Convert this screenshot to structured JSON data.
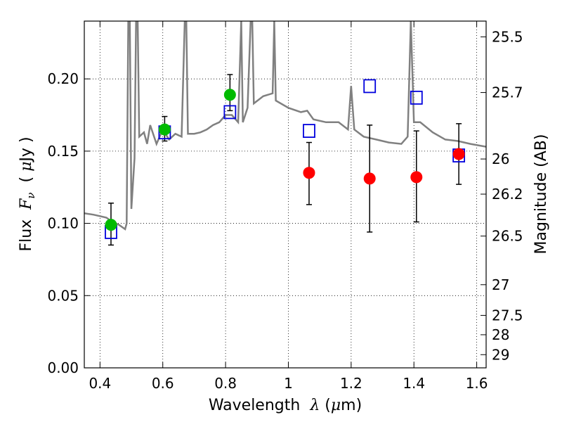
{
  "chart_data": {
    "type": "scatter",
    "title": "",
    "xlabel": {
      "prefix": "Wavelength  ",
      "symbol": "λ",
      "unit_open": " (",
      "unit_mu": "μ",
      "unit_close": "m)"
    },
    "ylabel": {
      "prefix": "Flux  ",
      "symbol": "F",
      "sub": "ν",
      "unit_open": "  ( ",
      "unit_mu": "μ",
      "unit_close": "Jy )"
    },
    "y2label": "Magnitude (AB)",
    "xlim": [
      0.35,
      1.63
    ],
    "ylim": [
      0.0,
      0.24
    ],
    "grid": true,
    "x_ticks": [
      0.4,
      0.6,
      0.8,
      1.0,
      1.2,
      1.4,
      1.6
    ],
    "x_tick_labels": [
      "0.4",
      "0.6",
      "0.8",
      "1",
      "1.2",
      "1.4",
      "1.6"
    ],
    "y_ticks": [
      0.0,
      0.05,
      0.1,
      0.15,
      0.2
    ],
    "y_tick_labels": [
      "0.00",
      "0.05",
      "0.10",
      "0.15",
      "0.20"
    ],
    "mag_ticks": [
      25.5,
      25.7,
      26,
      26.2,
      26.5,
      27,
      27.5,
      28,
      29
    ],
    "mag_tick_labels": [
      "25.5",
      "25.7",
      "26",
      "26.2",
      "26.5",
      "27",
      "27.5",
      "28",
      "29"
    ],
    "colors": {
      "model": "#808080",
      "green": "#00bb00",
      "red": "#ff0000",
      "blue": "#0000dd",
      "err": "#000000"
    },
    "model_spectrum": [
      [
        0.35,
        0.107
      ],
      [
        0.38,
        0.106
      ],
      [
        0.4,
        0.105
      ],
      [
        0.42,
        0.104
      ],
      [
        0.44,
        0.101
      ],
      [
        0.46,
        0.099
      ],
      [
        0.48,
        0.096
      ],
      [
        0.485,
        0.1
      ],
      [
        0.49,
        0.24
      ],
      [
        0.495,
        0.24
      ],
      [
        0.5,
        0.11
      ],
      [
        0.51,
        0.145
      ],
      [
        0.515,
        0.24
      ],
      [
        0.52,
        0.24
      ],
      [
        0.525,
        0.16
      ],
      [
        0.54,
        0.163
      ],
      [
        0.55,
        0.155
      ],
      [
        0.56,
        0.168
      ],
      [
        0.58,
        0.155
      ],
      [
        0.6,
        0.165
      ],
      [
        0.62,
        0.158
      ],
      [
        0.64,
        0.162
      ],
      [
        0.66,
        0.16
      ],
      [
        0.67,
        0.24
      ],
      [
        0.675,
        0.24
      ],
      [
        0.68,
        0.162
      ],
      [
        0.7,
        0.162
      ],
      [
        0.72,
        0.163
      ],
      [
        0.74,
        0.165
      ],
      [
        0.76,
        0.168
      ],
      [
        0.78,
        0.17
      ],
      [
        0.8,
        0.175
      ],
      [
        0.82,
        0.175
      ],
      [
        0.84,
        0.17
      ],
      [
        0.85,
        0.24
      ],
      [
        0.855,
        0.17
      ],
      [
        0.87,
        0.18
      ],
      [
        0.88,
        0.24
      ],
      [
        0.885,
        0.24
      ],
      [
        0.89,
        0.183
      ],
      [
        0.92,
        0.188
      ],
      [
        0.95,
        0.19
      ],
      [
        0.955,
        0.24
      ],
      [
        0.96,
        0.185
      ],
      [
        1.0,
        0.18
      ],
      [
        1.04,
        0.177
      ],
      [
        1.06,
        0.178
      ],
      [
        1.08,
        0.172
      ],
      [
        1.12,
        0.17
      ],
      [
        1.16,
        0.17
      ],
      [
        1.19,
        0.165
      ],
      [
        1.2,
        0.195
      ],
      [
        1.21,
        0.165
      ],
      [
        1.24,
        0.16
      ],
      [
        1.28,
        0.158
      ],
      [
        1.32,
        0.156
      ],
      [
        1.36,
        0.155
      ],
      [
        1.38,
        0.16
      ],
      [
        1.39,
        0.24
      ],
      [
        1.4,
        0.17
      ],
      [
        1.42,
        0.17
      ],
      [
        1.46,
        0.163
      ],
      [
        1.5,
        0.158
      ],
      [
        1.54,
        0.157
      ],
      [
        1.58,
        0.155
      ],
      [
        1.63,
        0.153
      ]
    ],
    "green_points": [
      {
        "x": 0.435,
        "y": 0.099,
        "err_low": 0.085,
        "err_high": 0.114
      },
      {
        "x": 0.606,
        "y": 0.165,
        "err_low": 0.157,
        "err_high": 0.174
      },
      {
        "x": 0.814,
        "y": 0.189,
        "err_low": 0.178,
        "err_high": 0.203
      }
    ],
    "red_points": [
      {
        "x": 1.066,
        "y": 0.135,
        "err_low": 0.113,
        "err_high": 0.156
      },
      {
        "x": 1.259,
        "y": 0.131,
        "err_low": 0.094,
        "err_high": 0.168
      },
      {
        "x": 1.408,
        "y": 0.132,
        "err_low": 0.101,
        "err_high": 0.164
      },
      {
        "x": 1.543,
        "y": 0.148,
        "err_low": 0.127,
        "err_high": 0.169
      }
    ],
    "blue_squares": [
      {
        "x": 0.435,
        "y": 0.094
      },
      {
        "x": 0.606,
        "y": 0.163
      },
      {
        "x": 0.814,
        "y": 0.177
      },
      {
        "x": 1.066,
        "y": 0.164
      },
      {
        "x": 1.259,
        "y": 0.195
      },
      {
        "x": 1.408,
        "y": 0.187
      },
      {
        "x": 1.543,
        "y": 0.147
      }
    ]
  }
}
